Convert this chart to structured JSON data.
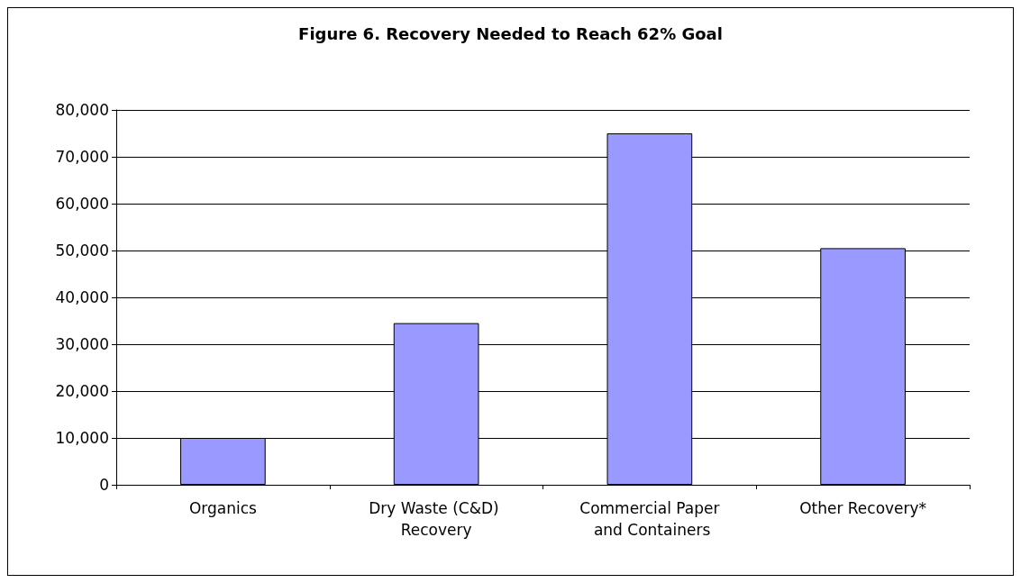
{
  "chart_data": {
    "type": "bar",
    "title": "Figure 6. Recovery Needed to Reach 62% Goal",
    "categories": [
      "Organics",
      "Dry Waste (C&D) Recovery",
      "Commercial Paper and Containers",
      "Other Recovery*"
    ],
    "values": [
      10000,
      34500,
      75000,
      50500
    ],
    "color": "#9999ff",
    "ylim": [
      0,
      80000
    ],
    "yticks": [
      0,
      {
        "value": 10000,
        "label": "10,000"
      },
      {
        "value": 20000,
        "label": "20,000"
      },
      {
        "value": 30000,
        "label": "30,000"
      },
      {
        "value": 40000,
        "label": "40,000"
      },
      {
        "value": 50000,
        "label": "50,000"
      },
      {
        "value": 60000,
        "label": "60,000"
      },
      {
        "value": 70000,
        "label": "70,000"
      },
      {
        "value": 80000,
        "label": "80,000"
      }
    ],
    "grid": "y"
  }
}
